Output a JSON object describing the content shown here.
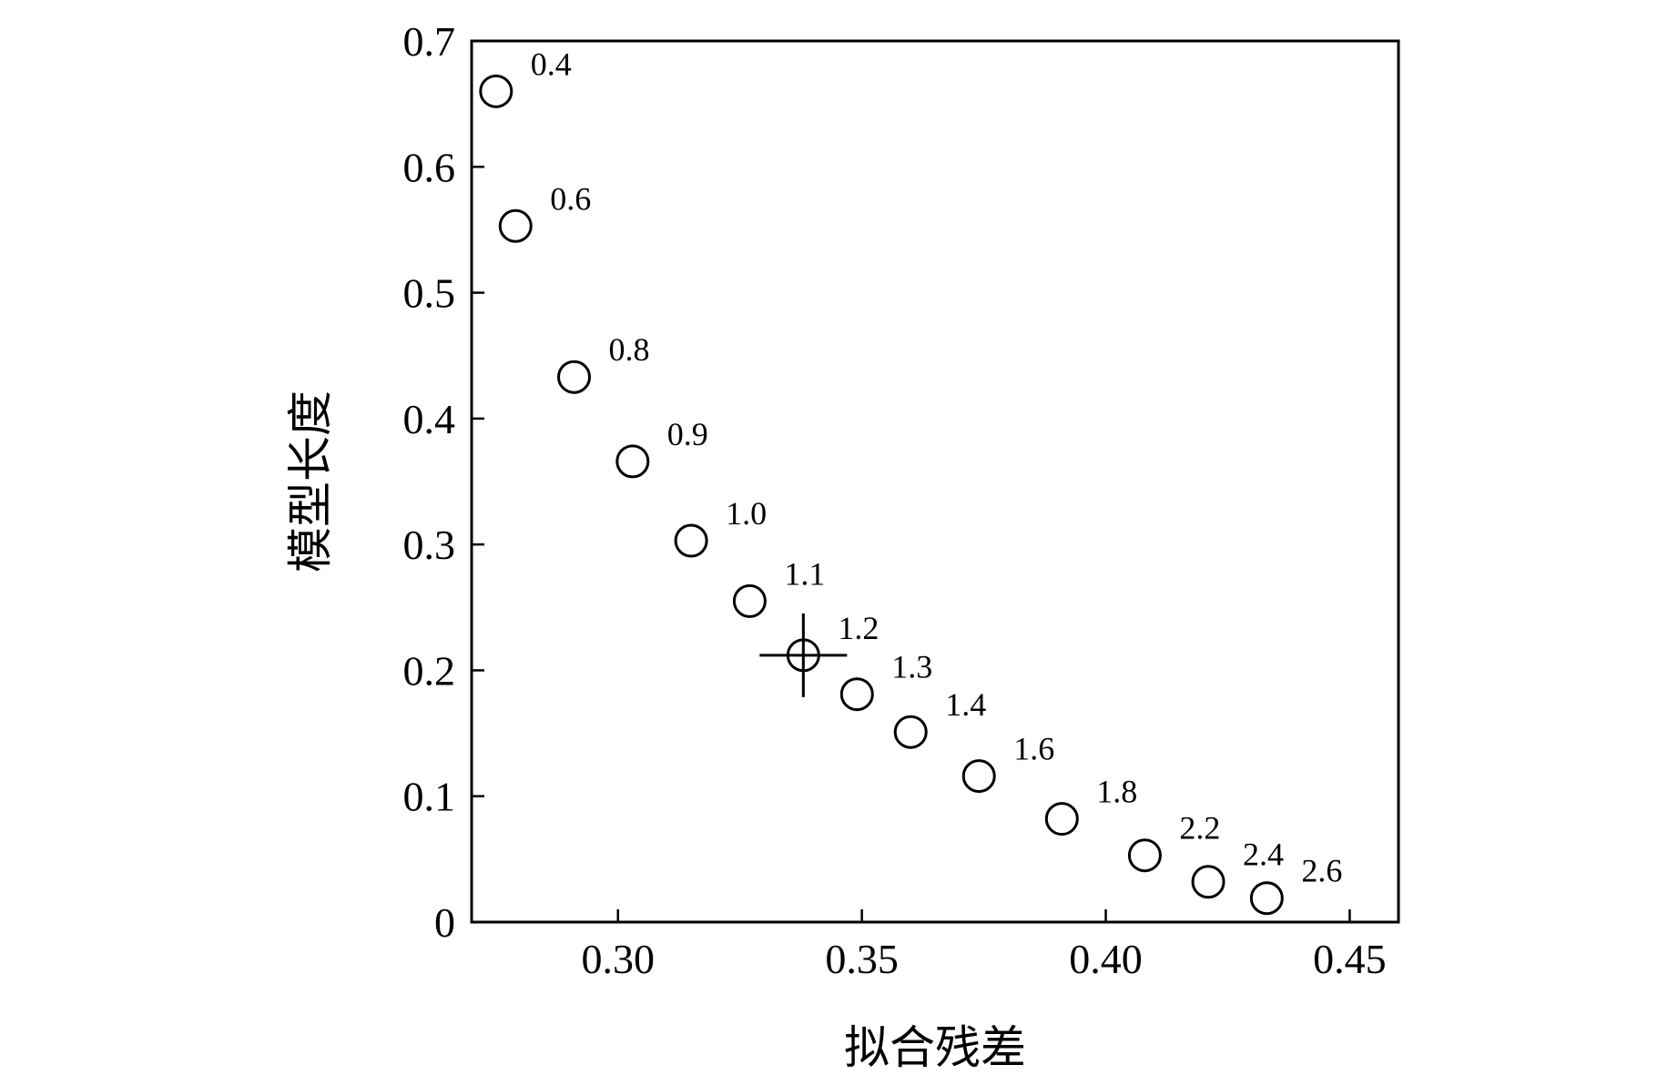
{
  "chart_data": {
    "type": "scatter",
    "title": "",
    "xlabel": "拟合残差",
    "ylabel": "模型长度",
    "xlim": [
      0.27,
      0.46
    ],
    "ylim": [
      0,
      0.7
    ],
    "grid": false,
    "legend": "none",
    "x_ticks": [
      {
        "value": 0.3,
        "label": "0.30"
      },
      {
        "value": 0.35,
        "label": "0.35"
      },
      {
        "value": 0.4,
        "label": "0.40"
      },
      {
        "value": 0.45,
        "label": "0.45"
      }
    ],
    "y_ticks": [
      {
        "value": 0,
        "label": "0"
      },
      {
        "value": 0.1,
        "label": "0.1"
      },
      {
        "value": 0.2,
        "label": "0.2"
      },
      {
        "value": 0.3,
        "label": "0.3"
      },
      {
        "value": 0.4,
        "label": "0.4"
      },
      {
        "value": 0.5,
        "label": "0.5"
      },
      {
        "value": 0.6,
        "label": "0.6"
      },
      {
        "value": 0.7,
        "label": "0.7"
      }
    ],
    "points": [
      {
        "x": 0.275,
        "y": 0.66,
        "label": "0.4"
      },
      {
        "x": 0.279,
        "y": 0.553,
        "label": "0.6"
      },
      {
        "x": 0.291,
        "y": 0.433,
        "label": "0.8"
      },
      {
        "x": 0.303,
        "y": 0.366,
        "label": "0.9"
      },
      {
        "x": 0.315,
        "y": 0.303,
        "label": "1.0"
      },
      {
        "x": 0.327,
        "y": 0.255,
        "label": "1.1"
      },
      {
        "x": 0.338,
        "y": 0.212,
        "label": "1.2",
        "highlighted": true
      },
      {
        "x": 0.349,
        "y": 0.181,
        "label": "1.3"
      },
      {
        "x": 0.36,
        "y": 0.151,
        "label": "1.4"
      },
      {
        "x": 0.374,
        "y": 0.116,
        "label": "1.6"
      },
      {
        "x": 0.391,
        "y": 0.082,
        "label": "1.8"
      },
      {
        "x": 0.408,
        "y": 0.053,
        "label": "2.2"
      },
      {
        "x": 0.421,
        "y": 0.032,
        "label": "2.4"
      },
      {
        "x": 0.433,
        "y": 0.019,
        "label": "2.6"
      }
    ],
    "colors": {
      "marker": "#000000",
      "axis": "#000000",
      "background": "#ffffff"
    }
  }
}
